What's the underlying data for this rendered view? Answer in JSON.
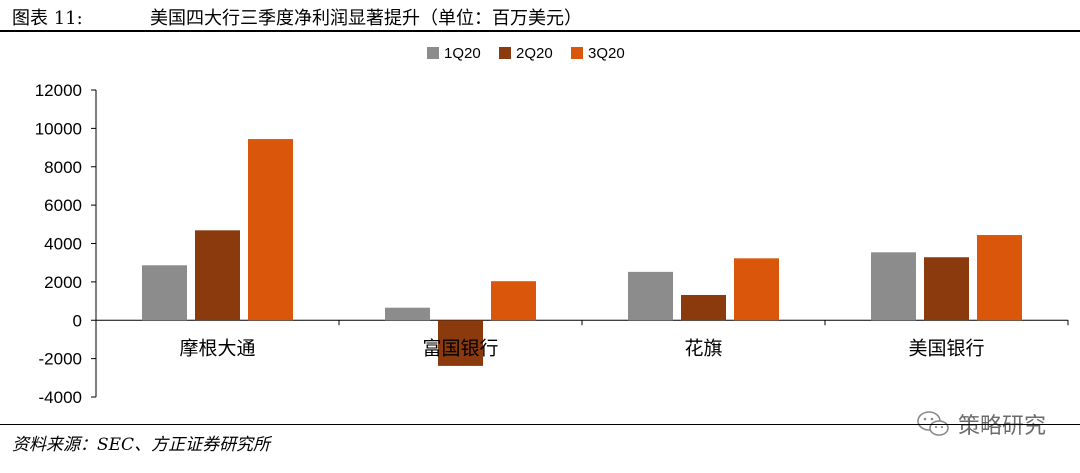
{
  "header": {
    "figure_label": "图表 11:",
    "title": "美国四大行三季度净利润显著提升（单位：百万美元）"
  },
  "source_note": "资料来源：SEC、方正证券研究所",
  "watermark": {
    "text": "策略研究",
    "icon": "wechat-logo-icon"
  },
  "chart_data": {
    "type": "bar",
    "title": "美国四大行三季度净利润显著提升（单位：百万美元）",
    "categories": [
      "摩根大通",
      "富国银行",
      "花旗",
      "美国银行"
    ],
    "series": [
      {
        "name": "1Q20",
        "color": "#8c8c8c",
        "values": [
          2865,
          653,
          2522,
          3541
        ]
      },
      {
        "name": "2Q20",
        "color": "#8b3a0e",
        "values": [
          4687,
          -2379,
          1317,
          3284
        ]
      },
      {
        "name": "3Q20",
        "color": "#d9560a",
        "values": [
          9443,
          2035,
          3227,
          4441
        ]
      }
    ],
    "ylim": [
      -4000,
      12000
    ],
    "yticks": [
      -4000,
      -2000,
      0,
      2000,
      4000,
      6000,
      8000,
      10000,
      12000
    ],
    "xlabel": "",
    "ylabel": "",
    "legend_position": "top-center",
    "grid": false
  }
}
